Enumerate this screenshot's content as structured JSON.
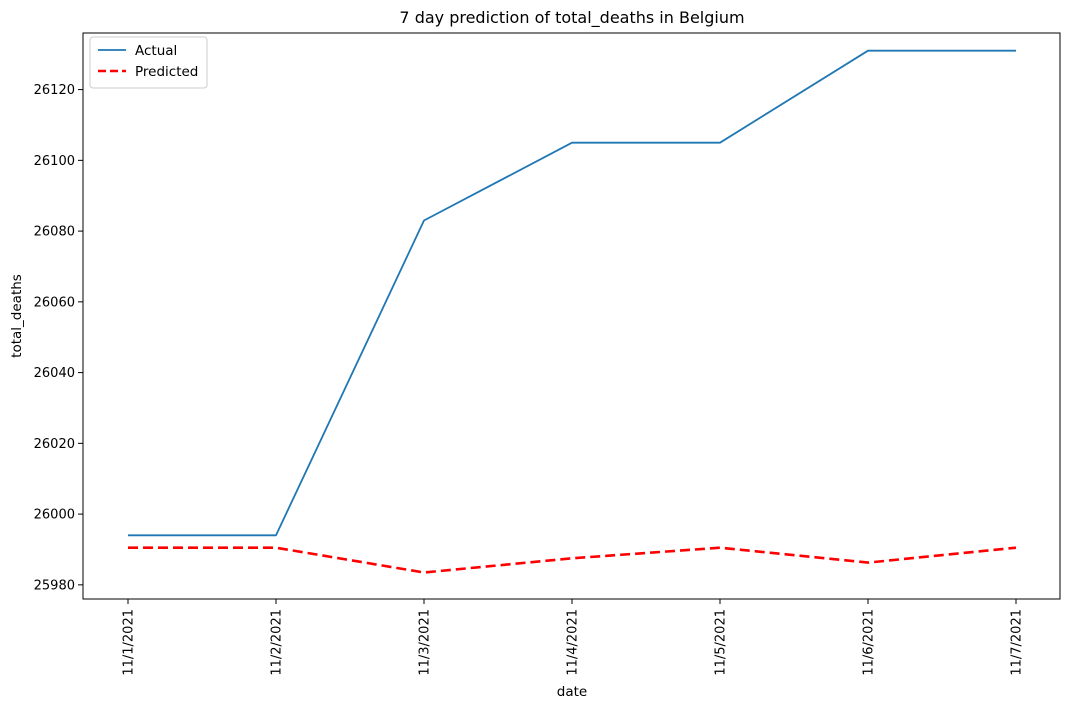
{
  "chart_data": {
    "type": "line",
    "title": "7 day prediction of total_deaths in Belgium",
    "xlabel": "date",
    "ylabel": "total_deaths",
    "categories": [
      "11/1/2021",
      "11/2/2021",
      "11/3/2021",
      "11/4/2021",
      "11/5/2021",
      "11/6/2021",
      "11/7/2021"
    ],
    "ylim": [
      25976,
      26136
    ],
    "yticks": [
      25980,
      26000,
      26020,
      26040,
      26060,
      26080,
      26100,
      26120
    ],
    "grid": false,
    "legend_position": "top-left",
    "series": [
      {
        "name": "Actual",
        "color": "#1f77b4",
        "style": "solid",
        "values": [
          25994,
          25994,
          26083,
          26105,
          26105,
          26131,
          26131
        ]
      },
      {
        "name": "Predicted",
        "color": "#ff0000",
        "style": "dashed",
        "values": [
          25990.5,
          25990.5,
          25983.5,
          25987.5,
          25990.5,
          25986.3,
          25990.5
        ]
      }
    ]
  }
}
